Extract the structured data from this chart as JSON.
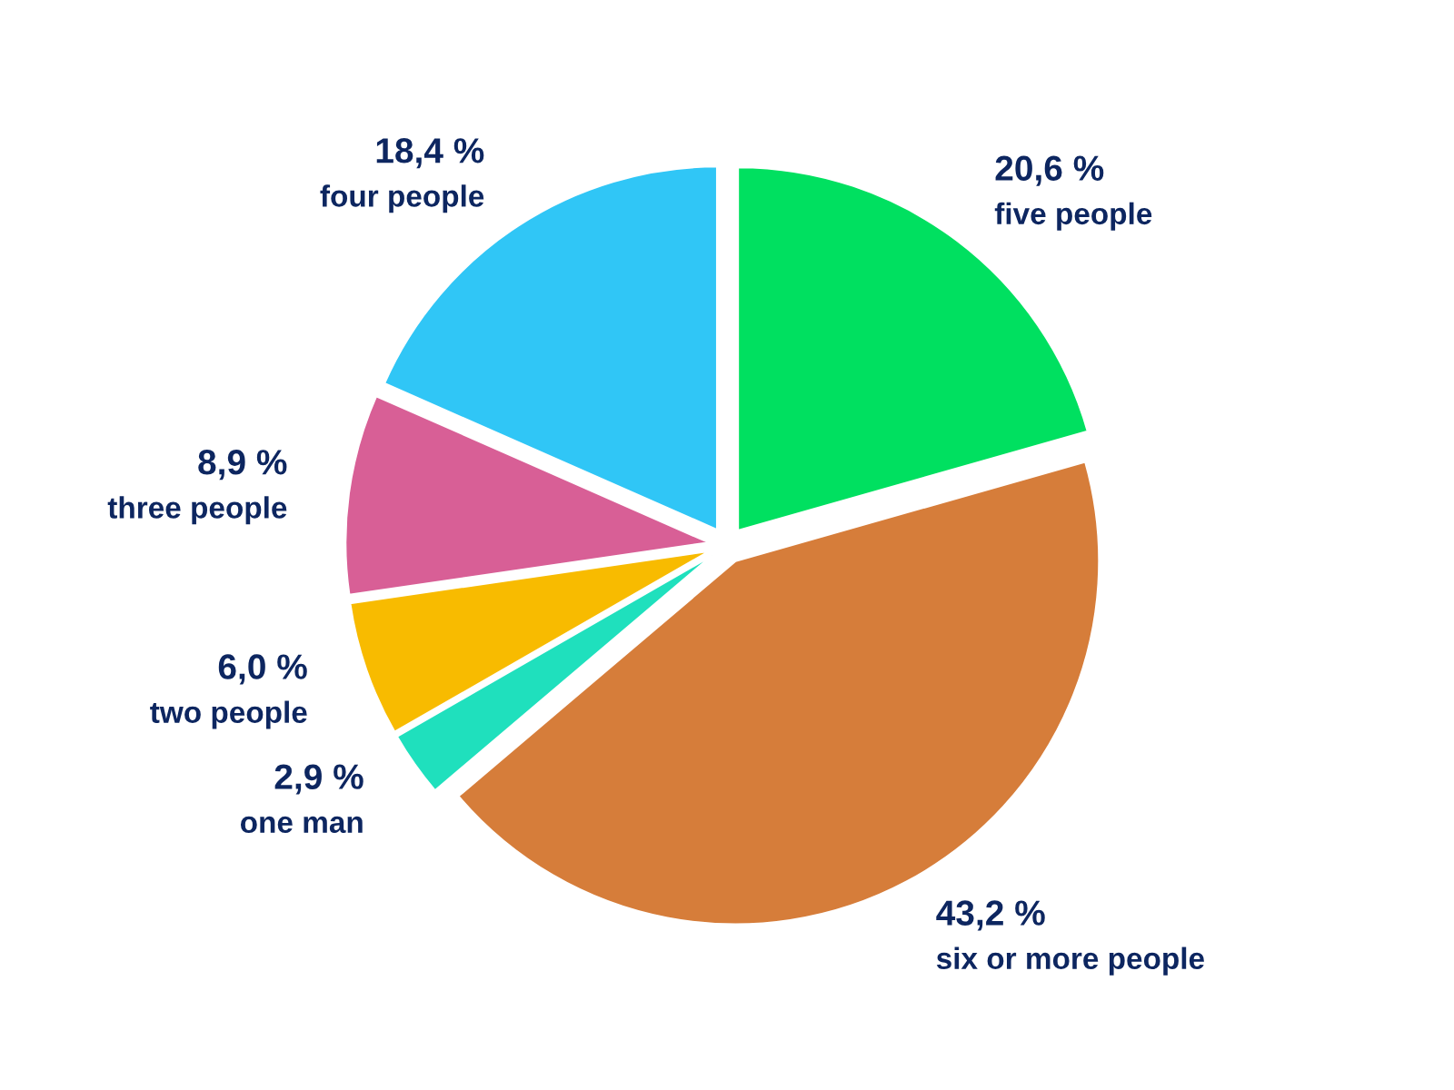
{
  "chart_data": {
    "type": "pie",
    "categories": [
      "five people",
      "six or more people",
      "one man",
      "two people",
      "three people",
      "four people"
    ],
    "values": [
      20.6,
      43.2,
      2.9,
      6.0,
      8.9,
      18.4
    ],
    "colors": [
      "#00e060",
      "#d67d3a",
      "#1fe0bd",
      "#f8bb00",
      "#d85f96",
      "#30c6f6"
    ],
    "value_labels": [
      "20,6 %",
      "43,2 %",
      "2,9 %",
      "6,0 %",
      "8,9 %",
      "18,4 %"
    ]
  }
}
